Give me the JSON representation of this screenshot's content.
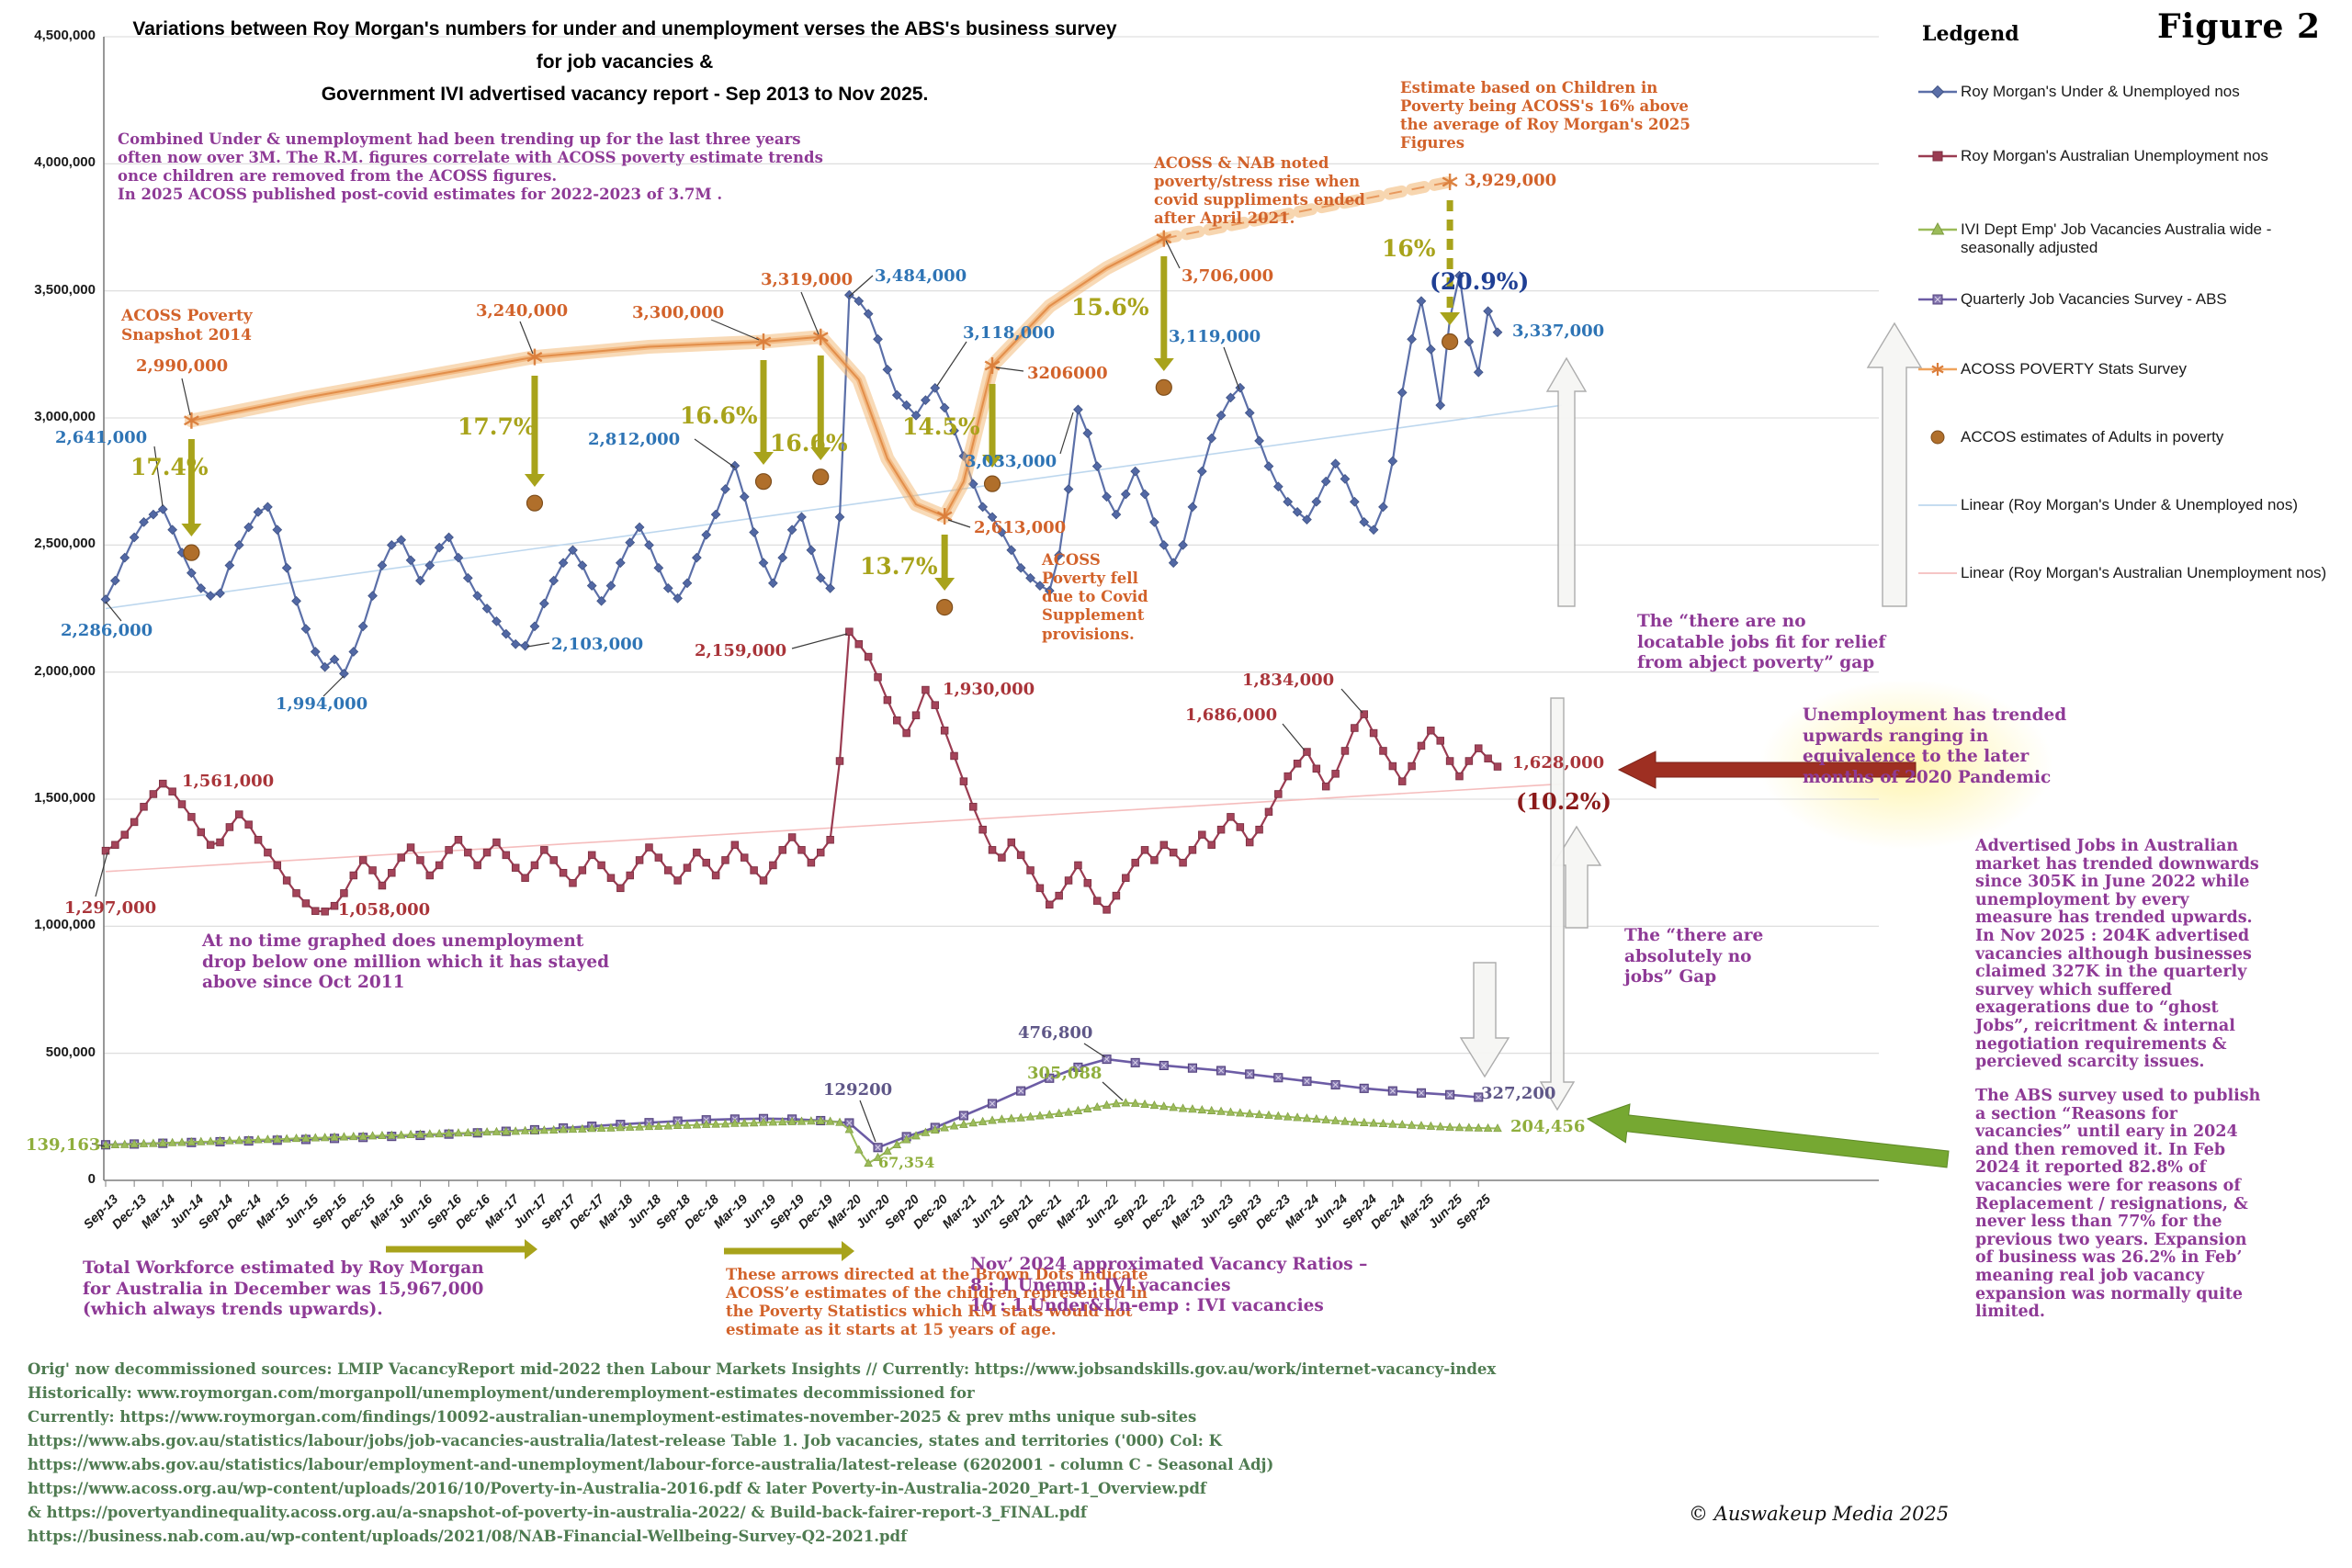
{
  "figure_label": "Figure 2",
  "title": "Variations between Roy Morgan's numbers for under and unemployment verses the ABS's business survey for job vacancies &\nGovernment IVI advertised vacancy report - Sep 2013 to Nov 2025.",
  "legend": {
    "title": "Ledgend",
    "items": [
      {
        "label": "Roy Morgan's Under & Unemployed nos",
        "marker": "line-diamond",
        "color": "#5B6FA8"
      },
      {
        "label": "Roy Morgan's Australian Unemployment nos",
        "marker": "line-square",
        "color": "#9A3B51"
      },
      {
        "label": "IVI Dept Emp' Job Vacancies Australia wide - seasonally adjusted",
        "marker": "line-triangle",
        "color": "#9BBB59"
      },
      {
        "label": "Quarterly Job Vacancies Survey - ABS",
        "marker": "line-xsquare",
        "color": "#6C5CA5"
      },
      {
        "label": "ACOSS POVERTY Stats Survey",
        "marker": "line-star",
        "color": "#EFA35C"
      },
      {
        "label": "ACCOS estimates of Adults in poverty",
        "marker": "dot",
        "color": "#B06F2B"
      },
      {
        "label": "Linear (Roy Morgan's Under & Unemployed nos)",
        "marker": "line-thin",
        "color": "#BDD7EE"
      },
      {
        "label": "Linear (Roy Morgan's Australian Unemployment nos)",
        "marker": "line-thin",
        "color": "#F5BDBD"
      }
    ]
  },
  "chart_data": {
    "type": "line",
    "title": "Variations between Roy Morgan's numbers for under and unemployment verses the ABS's business survey for job vacancies & Government IVI advertised vacancy report - Sep 2013 to Nov 2025.",
    "ylim": [
      0,
      4500000
    ],
    "y_tick_labels": [
      "4,500,000",
      "4,000,000",
      "3,500,000",
      "3,000,000",
      "2,500,000",
      "2,000,000",
      "1,500,000",
      "1,000,000",
      "500,000",
      "0"
    ],
    "x_tick_labels": [
      "Sep-13",
      "Dec-13",
      "Mar-14",
      "Jun-14",
      "Sep-14",
      "Dec-14",
      "Mar-15",
      "Jun-15",
      "Sep-15",
      "Dec-15",
      "Mar-16",
      "Jun-16",
      "Sep-16",
      "Dec-16",
      "Mar-17",
      "Jun-17",
      "Sep-17",
      "Dec-17",
      "Mar-18",
      "Jun-18",
      "Sep-18",
      "Dec-18",
      "Mar-19",
      "Jun-19",
      "Sep-19",
      "Dec-19",
      "Mar-20",
      "Jun-20",
      "Sep-20",
      "Dec-20",
      "Mar-21",
      "Jun-21",
      "Sep-21",
      "Dec-21",
      "Mar-22",
      "Jun-22",
      "Sep-22",
      "Dec-22",
      "Mar-23",
      "Jun-23",
      "Sep-23",
      "Dec-23",
      "Mar-24",
      "Jun-24",
      "Sep-24",
      "Dec-24",
      "Mar-25",
      "Jun-25",
      "Sep-25"
    ],
    "x_unit": "months, index 0 = Sep-2013 to index 146 = Nov-2025 (estimated from plot)",
    "series": [
      {
        "name": "Roy Morgan's Under & Unemployed nos",
        "color": "#5B6FA8",
        "marker": "diamond",
        "cadence": "monthly",
        "values_thousands": [
          2286,
          2360,
          2450,
          2530,
          2590,
          2620,
          2641,
          2560,
          2470,
          2390,
          2330,
          2300,
          2310,
          2420,
          2500,
          2570,
          2630,
          2650,
          2560,
          2410,
          2280,
          2170,
          2080,
          2020,
          2050,
          1994,
          2080,
          2180,
          2300,
          2420,
          2500,
          2520,
          2440,
          2360,
          2420,
          2490,
          2530,
          2450,
          2370,
          2300,
          2250,
          2200,
          2150,
          2110,
          2103,
          2180,
          2270,
          2360,
          2430,
          2480,
          2420,
          2340,
          2280,
          2340,
          2430,
          2510,
          2570,
          2500,
          2410,
          2330,
          2290,
          2350,
          2450,
          2540,
          2620,
          2720,
          2812,
          2690,
          2550,
          2430,
          2350,
          2450,
          2560,
          2610,
          2480,
          2370,
          2330,
          2610,
          3484,
          3460,
          3410,
          3310,
          3190,
          3090,
          3050,
          3010,
          3070,
          3118,
          3040,
          2950,
          2850,
          2740,
          2650,
          2610,
          2550,
          2480,
          2410,
          2370,
          2340,
          2320,
          2460,
          2720,
          3033,
          2940,
          2810,
          2690,
          2620,
          2700,
          2790,
          2700,
          2590,
          2500,
          2430,
          2500,
          2650,
          2790,
          2920,
          3010,
          3080,
          3119,
          3020,
          2910,
          2810,
          2730,
          2670,
          2630,
          2600,
          2670,
          2750,
          2820,
          2760,
          2670,
          2590,
          2560,
          2650,
          2830,
          3100,
          3310,
          3460,
          3270,
          3050,
          3390,
          3560,
          3300,
          3180,
          3420,
          3337
        ]
      },
      {
        "name": "Roy Morgan's Australian Unemployment nos",
        "color": "#9A3B51",
        "marker": "square",
        "cadence": "monthly",
        "values_thousands": [
          1297,
          1320,
          1360,
          1410,
          1470,
          1520,
          1561,
          1530,
          1480,
          1430,
          1370,
          1320,
          1330,
          1390,
          1440,
          1400,
          1340,
          1290,
          1240,
          1180,
          1130,
          1090,
          1060,
          1058,
          1080,
          1130,
          1200,
          1260,
          1220,
          1160,
          1210,
          1270,
          1310,
          1260,
          1200,
          1240,
          1300,
          1340,
          1290,
          1240,
          1290,
          1330,
          1280,
          1230,
          1190,
          1240,
          1300,
          1260,
          1210,
          1170,
          1220,
          1280,
          1240,
          1190,
          1150,
          1200,
          1260,
          1310,
          1270,
          1220,
          1180,
          1230,
          1290,
          1250,
          1200,
          1260,
          1320,
          1270,
          1220,
          1180,
          1240,
          1300,
          1350,
          1300,
          1250,
          1290,
          1340,
          1650,
          2159,
          2110,
          2060,
          1980,
          1890,
          1810,
          1760,
          1830,
          1930,
          1870,
          1770,
          1670,
          1570,
          1470,
          1380,
          1300,
          1270,
          1330,
          1280,
          1220,
          1150,
          1085,
          1120,
          1180,
          1240,
          1170,
          1100,
          1065,
          1120,
          1190,
          1250,
          1300,
          1260,
          1320,
          1290,
          1250,
          1300,
          1360,
          1320,
          1380,
          1430,
          1390,
          1330,
          1380,
          1450,
          1520,
          1590,
          1640,
          1686,
          1620,
          1550,
          1600,
          1690,
          1780,
          1834,
          1760,
          1690,
          1630,
          1570,
          1630,
          1710,
          1770,
          1730,
          1650,
          1590,
          1650,
          1700,
          1660,
          1628
        ]
      },
      {
        "name": "IVI Dept Emp' Job Vacancies Australia wide - seasonally adjusted",
        "color": "#9BBB59",
        "marker": "triangle",
        "cadence": "monthly",
        "values_thousands": [
          139.163,
          140,
          141,
          143,
          144,
          145,
          147,
          148,
          149,
          151,
          152,
          153,
          155,
          156,
          157,
          158,
          160,
          161,
          162,
          163,
          165,
          166,
          167,
          168,
          170,
          171,
          172,
          173,
          175,
          176,
          177,
          178,
          180,
          181,
          182,
          183,
          185,
          186,
          187,
          188,
          190,
          191,
          192,
          193,
          195,
          196,
          197,
          198,
          200,
          201,
          202,
          204,
          205,
          206,
          208,
          209,
          210,
          212,
          213,
          214,
          216,
          217,
          218,
          220,
          221,
          222,
          224,
          225,
          226,
          228,
          229,
          230,
          231,
          232,
          233,
          234,
          232,
          228,
          200,
          120,
          67.354,
          90,
          115,
          140,
          160,
          175,
          188,
          198,
          207,
          214,
          220,
          226,
          231,
          236,
          240,
          243,
          246,
          250,
          254,
          258,
          263,
          268,
          274,
          281,
          288,
          296,
          302,
          305.088,
          303,
          299,
          295,
          291,
          287,
          283,
          280,
          277,
          274,
          271,
          268,
          265,
          262,
          259,
          256,
          253,
          250,
          247,
          244,
          241,
          238,
          235,
          232,
          229,
          227,
          225,
          223,
          221,
          219,
          217,
          215,
          213,
          211,
          209,
          208,
          207,
          206,
          205,
          204.456
        ]
      },
      {
        "name": "Quarterly Job Vacancies Survey - ABS",
        "color": "#6C5CA5",
        "marker": "square-x",
        "cadence": "quarterly",
        "values_thousands": [
          140,
          143,
          146,
          149,
          152,
          155,
          158,
          161,
          165,
          169,
          173,
          177,
          182,
          187,
          193,
          199,
          206,
          213,
          220,
          227,
          233,
          238,
          241,
          243,
          241,
          235,
          226,
          129.2,
          172,
          208,
          255,
          302,
          352,
          402,
          445,
          476.8,
          463,
          452,
          442,
          432,
          418,
          404,
          390,
          376,
          362,
          352,
          344,
          337,
          327.2
        ]
      },
      {
        "name": "ACOSS POVERTY Stats Survey",
        "type": "glow-line",
        "color": "#EFA35C",
        "solid_points_month_value_thousands": [
          [
            9,
            2990
          ],
          [
            21,
            3080
          ],
          [
            33,
            3160
          ],
          [
            45,
            3240
          ],
          [
            57,
            3280
          ],
          [
            69,
            3300
          ],
          [
            75,
            3319
          ],
          [
            79,
            3150
          ],
          [
            82,
            2840
          ],
          [
            85,
            2660
          ],
          [
            88,
            2613
          ],
          [
            90,
            2750
          ],
          [
            93,
            3206
          ],
          [
            99,
            3440
          ],
          [
            105,
            3590
          ],
          [
            111,
            3706
          ]
        ],
        "dashed_points_month_value_thousands": [
          [
            111,
            3706
          ],
          [
            141,
            3929
          ]
        ]
      },
      {
        "name": "ACCOS estimates of Adults in poverty",
        "type": "points",
        "color": "#B06F2B",
        "points_month_value_thousands": [
          [
            9,
            2470
          ],
          [
            45,
            2665
          ],
          [
            69,
            2750
          ],
          [
            75,
            2768
          ],
          [
            88,
            2255
          ],
          [
            93,
            2741
          ],
          [
            111,
            3120
          ],
          [
            141,
            3300
          ]
        ]
      }
    ],
    "trendlines": [
      {
        "name": "Linear (Roy Morgan's Under & Unemployed nos)",
        "color": "#BDD7EE",
        "start_thousands": 2250,
        "end_thousands": 3050
      },
      {
        "name": "Linear (Roy Morgan's Australian Unemployment nos)",
        "color": "#F5BDBD",
        "start_thousands": 1215,
        "end_thousands": 1560
      }
    ]
  },
  "labels": {
    "blue": {
      "start": "2,286,000",
      "peak2014": "2,641,000",
      "low2015": "1,994,000",
      "low2017": "2,103,000",
      "peak2019": "2,812,000",
      "covid": "3,484,000",
      "dec2020": "3,118,000",
      "y2022": "3,033,000",
      "y2023": "3,119,000",
      "final": "3,337,000",
      "final_pct": "(20.9%)"
    },
    "red": {
      "start": "1,297,000",
      "peak2014": "1,561,000",
      "low2015": "1,058,000",
      "covid": "2,159,000",
      "nov2020": "1,930,000",
      "y2024a": "1,686,000",
      "y2024b": "1,834,000",
      "final": "1,628,000",
      "final_pct": "(10.2%)"
    },
    "acoss": {
      "p2014": "2,990,000",
      "p2017": "3,240,000",
      "p2019a": "3,300,000",
      "p2019b": "3,319,000",
      "covid_low": "2,613,000",
      "p2021": "3206000",
      "p2022": "3,706,000",
      "p2025": "3,929,000"
    },
    "pct": {
      "a": "17.4%",
      "b": "17.7%",
      "c": "16.6%",
      "d": "16.6%",
      "e": "13.7%",
      "f": "14.5%",
      "g": "15.6%",
      "h": "16%"
    },
    "ivi": {
      "start": "139,163",
      "low": "67,354",
      "peak": "305,088",
      "final": "204,456"
    },
    "abs": {
      "low": "129200",
      "peak": "476,800",
      "final": "327,200"
    }
  },
  "annotations": {
    "combined": "Combined Under & unemployment had been trending up for the last three years\noften now over 3M. The R.M. figures correlate with ACOSS poverty estimate trends\nonce children are removed from the ACOSS figures.\nIn 2025 ACOSS published post-covid estimates for 2022-2023 of 3.7M .",
    "snapshot": "ACOSS Poverty\nSnapshot 2014",
    "nab": "ACOSS & NAB noted\npoverty/stress  rise when\ncovid suppliments ended\nafter April 2021.",
    "children": "Estimate based  on Children in\nPoverty being ACOSS's 16% above\nthe average of Roy Morgan's 2025\nFigures",
    "fell": "ACOSS\nPoverty fell\ndue to Covid\nSupplement\nprovisions.",
    "notime": "At no time graphed does unemployment\ndrop below one million which it has stayed\nabove since Oct 2011",
    "locatable": "The “there are no\nlocatable jobs fit for relief\nfrom abject poverty” gap",
    "absolutely": "The “there are\nabsolutely  no\njobs” Gap",
    "trended": "Unemployment has trended\nupwards ranging in\nequivalence to the later\nmonths of 2020 Pandemic",
    "advertised": "Advertised Jobs in Australian\nmarket has trended downwards\nsince 305K in June 2022 while\nunemployment by every\nmeasure has trended upwards.\nIn Nov 2025 : 204K advertised\nvacancies although businesses\nclaimed 327K in the quarterly\nsurvey which suffered\nexagerations due to “ghost\nJobs”, reicritment & internal\nnegotiation requirements &\npercieved scarcity issues.",
    "abssurvey": "The ABS survey used to publish\na section “Reasons for\nvacancies” until eary in 2024\nand then removed it.  In Feb\n2024 it reported 82.8% of\nvacancies were for reasons of\nReplacement / resignations, &\nnever less than 77% for the\nprevious two years. Expansion\nof business was 26.2% in Feb’\nmeaning real job vacancy\nexpansion was normally quite\nlimited.",
    "workforce": "Total Workforce estimated by Roy Morgan\nfor Australia in December was 15,967,000\n(which always trends upwards).",
    "arrowsnote": "These arrows directed at the Brown Dots indicate\nACOSS’e estimates of the children represented in\nthe Poverty Statistics which RM stats would not\nestimate as it starts at 15 years of age.",
    "ratios": "Nov’ 2024 approximated Vacancy Ratios –\n8 : 1  Unemp : IVI vacancies\n16 : 1  Under&Un-emp : IVI vacancies"
  },
  "sources": "Orig' now decommissioned sources: LMIP VacancyReport mid-2022 then Labour Markets Insights // Currently: https://www.jobsandskills.gov.au/work/internet-vacancy-index\nHistorically: www.roymorgan.com/morganpoll/unemployment/underemployment-estimates decommissioned for\nCurrently: https://www.roymorgan.com/findings/10092-australian-unemployment-estimates-november-2025 & prev mths unique sub-sites\nhttps://www.abs.gov.au/statistics/labour/jobs/job-vacancies-australia/latest-release Table 1. Job vacancies, states and territories ('000) Col: K\nhttps://www.abs.gov.au/statistics/labour/employment-and-unemployment/labour-force-australia/latest-release (6202001 - column C - Seasonal Adj)\nhttps://www.acoss.org.au/wp-content/uploads/2016/10/Poverty-in-Australia-2016.pdf & later Poverty-in-Australia-2020_Part-1_Overview.pdf\n& https://povertyandinequality.acoss.org.au/a-snapshot-of-poverty-in-australia-2022/ & Build-back-fairer-report-3_FINAL.pdf\nhttps://business.nab.com.au/wp-content/uploads/2021/08/NAB-Financial-Wellbeing-Survey-Q2-2021.pdf",
  "copyright": "© Auswakeup Media 2025"
}
